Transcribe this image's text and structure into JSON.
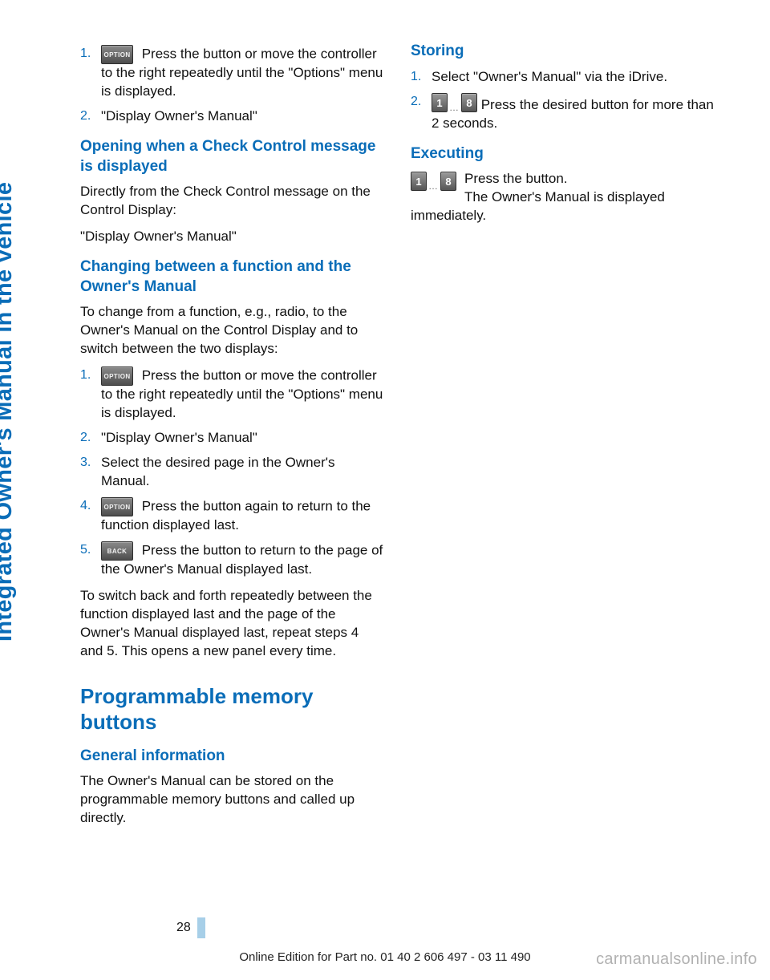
{
  "sideTab": "Integrated Owner's Manual in the vehicle",
  "left": {
    "list1": {
      "items": [
        {
          "num": "1.",
          "icon": "OPTION",
          "text": " Press the button or move the controller to the right repeatedly until the \"Options\" menu is displayed."
        },
        {
          "num": "2.",
          "text": "\"Display Owner's Manual\""
        }
      ]
    },
    "h3a": "Opening when a Check Control message is displayed",
    "p1": "Directly from the Check Control message on the Control Display:",
    "p2": "\"Display Owner's Manual\"",
    "h3b": "Changing between a function and the Owner's Manual",
    "p3": "To change from a function, e.g., radio, to the Owner's Manual on the Control Display and to switch between the two displays:",
    "list2": {
      "items": [
        {
          "num": "1.",
          "icon": "OPTION",
          "text": " Press the button or move the controller to the right repeatedly until the \"Options\" menu is displayed."
        },
        {
          "num": "2.",
          "text": "\"Display Owner's Manual\""
        },
        {
          "num": "3.",
          "text": "Select the desired page in the Owner's Manual."
        },
        {
          "num": "4.",
          "icon": "OPTION",
          "text": " Press the button again to return to the function displayed last."
        },
        {
          "num": "5.",
          "icon": "BACK",
          "text": " Press the button to return to the page of the Owner's Manual displayed last."
        }
      ]
    },
    "p4": "To switch back and forth repeatedly between the function displayed last and the page of the Owner's Manual displayed last, repeat steps 4 and 5. This opens a new panel every time.",
    "h2": "Programmable memory buttons",
    "h3c": "General information",
    "p5": "The Owner's Manual can be stored on the programmable memory buttons and called up directly."
  },
  "right": {
    "h3a": "Storing",
    "list1": {
      "items": [
        {
          "num": "1.",
          "text": "Select \"Owner's Manual\" via the iDrive."
        },
        {
          "num": "2.",
          "keys": [
            "1",
            "8"
          ],
          "text": " Press the desired button for more than 2 seconds."
        }
      ]
    },
    "h3b": "Executing",
    "exec": {
      "keys": [
        "1",
        "8"
      ],
      "line1": "Press the button.",
      "line2": "The Owner's Manual is displayed immediately."
    }
  },
  "pageNumber": "28",
  "footer": "Online Edition for Part no. 01 40 2 606 497 - 03 11 490",
  "watermark": "carmanualsonline.info",
  "colors": {
    "brand": "#0a6db8",
    "pagebar": "#a7cfe8"
  }
}
